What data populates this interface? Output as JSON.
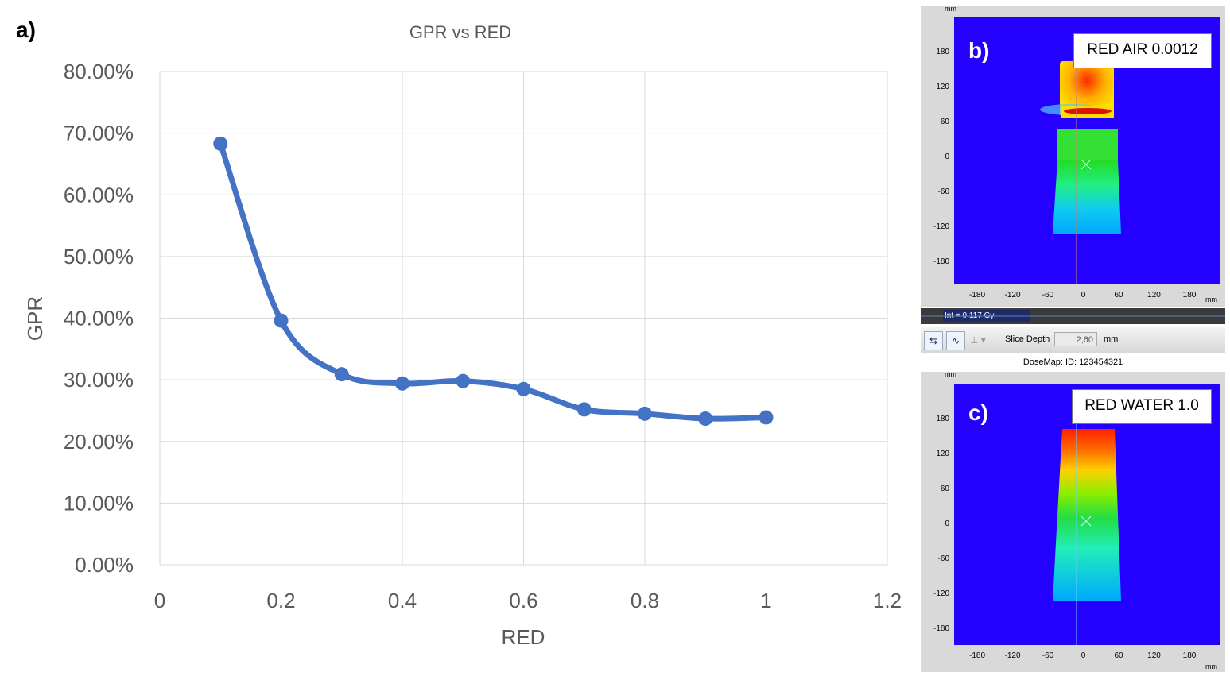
{
  "panel_a_label": "a)",
  "chart_data": {
    "type": "line",
    "title": "GPR vs RED",
    "xlabel": "RED",
    "ylabel": "GPR",
    "x_ticks": [
      "0",
      "0.2",
      "0.4",
      "0.6",
      "0.8",
      "1",
      "1.2"
    ],
    "y_ticks": [
      "0.00%",
      "10.00%",
      "20.00%",
      "30.00%",
      "40.00%",
      "50.00%",
      "60.00%",
      "70.00%",
      "80.00%"
    ],
    "xlim": [
      0,
      1.2
    ],
    "ylim": [
      0,
      80
    ],
    "grid": true,
    "series": [
      {
        "color": "#4472c4",
        "x": [
          0.1,
          0.2,
          0.3,
          0.4,
          0.5,
          0.6,
          0.7,
          0.8,
          0.9,
          1.0
        ],
        "y": [
          68.3,
          39.6,
          30.9,
          29.4,
          29.8,
          28.5,
          25.2,
          24.5,
          23.7,
          23.9
        ]
      }
    ]
  },
  "dosemap_b": {
    "panel_letter": "b)",
    "label": "RED AIR 0.0012",
    "unit_top": "mm",
    "unit_right": "mm",
    "y_ticks": [
      "180",
      "120",
      "60",
      "0",
      "-60",
      "-120",
      "-180"
    ],
    "x_ticks": [
      "-180",
      "-120",
      "-60",
      "0",
      "60",
      "120",
      "180"
    ]
  },
  "toolbar": {
    "int_readout": "Int = 0,117 Gy",
    "slice_depth_label": "Slice Depth",
    "slice_depth_value": "2,60",
    "slice_depth_unit": "mm",
    "dosemap_title": "DoseMap: ID: 123454321"
  },
  "dosemap_c": {
    "panel_letter": "c)",
    "label": "RED WATER 1.0",
    "unit_top": "mm",
    "unit_right": "mm",
    "y_ticks": [
      "180",
      "120",
      "60",
      "0",
      "-60",
      "-120",
      "-180"
    ],
    "x_ticks": [
      "-180",
      "-120",
      "-60",
      "0",
      "60",
      "120",
      "180"
    ]
  }
}
